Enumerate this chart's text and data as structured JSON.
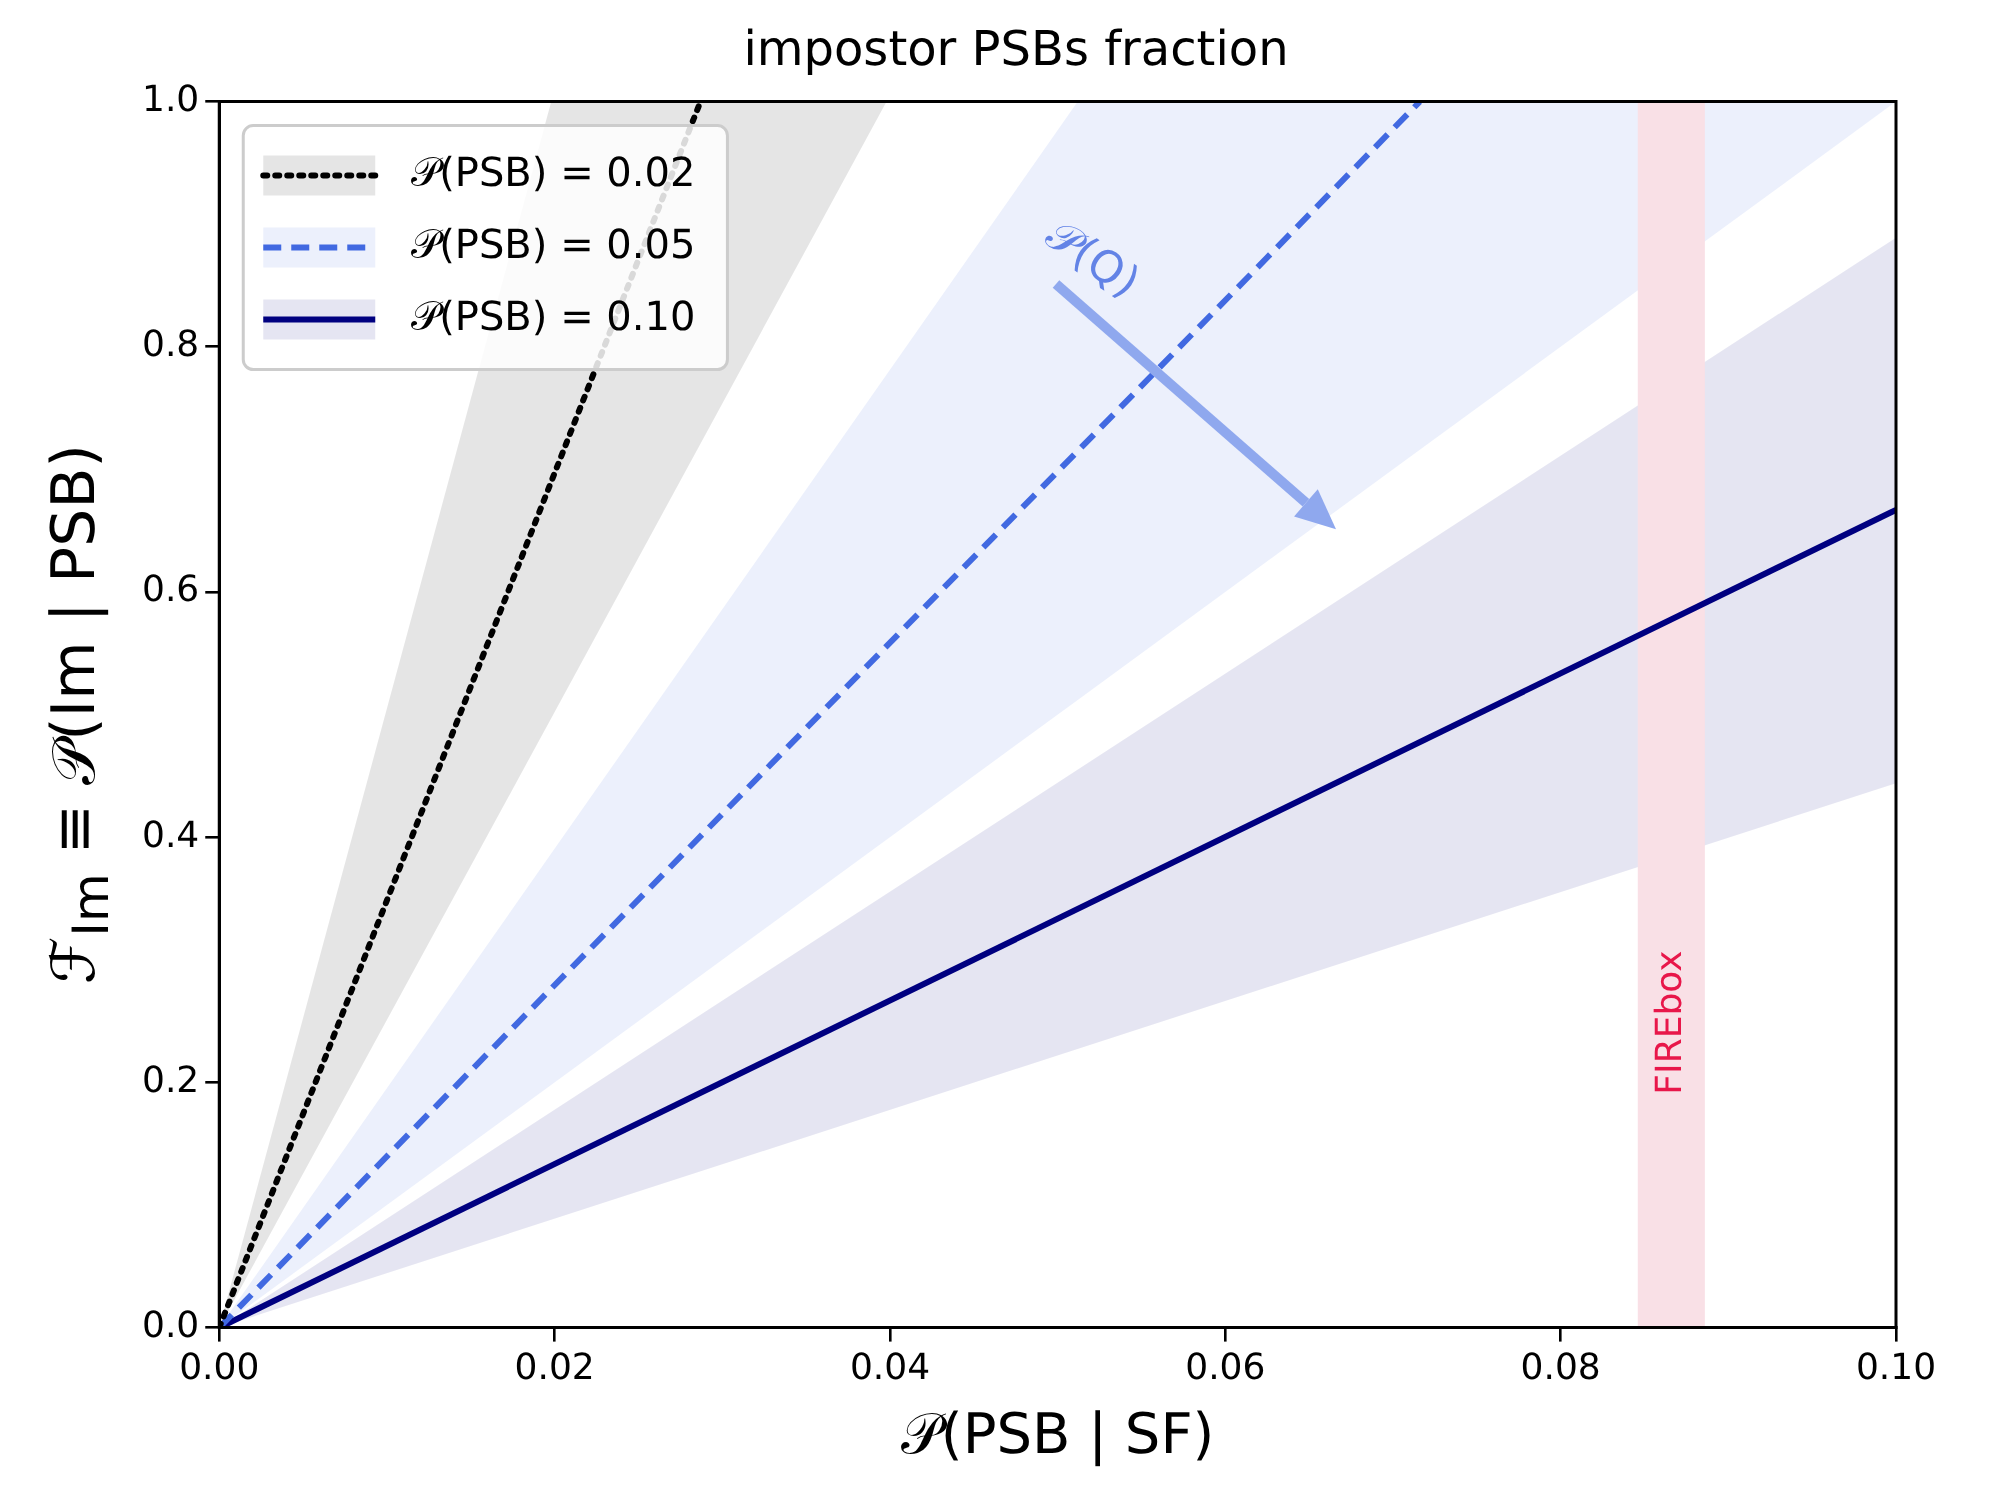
{
  "chart_data": {
    "type": "line",
    "title": "impostor PSBs fraction",
    "xlabel": "𝒫(PSB | SF)",
    "ylabel": "ℱ$_{Im}$ ≡ 𝒫(Im | PSB)",
    "series": [
      {
        "name": "𝒫(PSB) = 0.02",
        "color": "#000000",
        "line_style": "dotted",
        "x": [
          0,
          0.0198,
          0.0287,
          0.0398
        ],
        "values": [
          0,
          0.69,
          1,
          null
        ],
        "upper": [
          0,
          1,
          1,
          1
        ],
        "lower": [
          0,
          0.497,
          0.721,
          1
        ]
      },
      {
        "name": "𝒫(PSB) = 0.05",
        "color": "#4169e1",
        "line_style": "dashed",
        "x": [
          0,
          0.0512,
          0.0716,
          0.1
        ],
        "values": [
          0,
          0.715,
          1,
          null
        ],
        "upper": [
          0,
          1,
          1,
          1
        ],
        "lower": [
          0,
          0.512,
          0.716,
          1
        ]
      },
      {
        "name": "𝒫(PSB) = 0.10",
        "color": "#000080",
        "line_style": "solid",
        "x": [
          0,
          0.1
        ],
        "values": [
          0,
          0.667
        ],
        "upper": [
          0,
          0.889
        ],
        "lower": [
          0,
          0.444
        ]
      }
    ],
    "xlim": [
      0,
      0.1
    ],
    "ylim": [
      0,
      1
    ],
    "xticks": [
      {
        "value": 0,
        "label": "0.00"
      },
      {
        "value": 0.02,
        "label": "0.02"
      },
      {
        "value": 0.04,
        "label": "0.04"
      },
      {
        "value": 0.06,
        "label": "0.06"
      },
      {
        "value": 0.08,
        "label": "0.08"
      },
      {
        "value": 0.1,
        "label": "0.10"
      }
    ],
    "yticks": [
      {
        "value": 0,
        "label": "0.0"
      },
      {
        "value": 0.2,
        "label": "0.2"
      },
      {
        "value": 0.4,
        "label": "0.4"
      },
      {
        "value": 0.6,
        "label": "0.6"
      },
      {
        "value": 0.8,
        "label": "0.8"
      },
      {
        "value": 1,
        "label": "1.0"
      }
    ],
    "bands": [
      {
        "axis": "x",
        "from": 0.0846,
        "to": 0.0886,
        "label": "FIREbox",
        "color": "#f9e0e6"
      }
    ],
    "annotations": [
      "𝒫(Q)"
    ],
    "legend": "top left",
    "marker": "none",
    "grid": false
  }
}
